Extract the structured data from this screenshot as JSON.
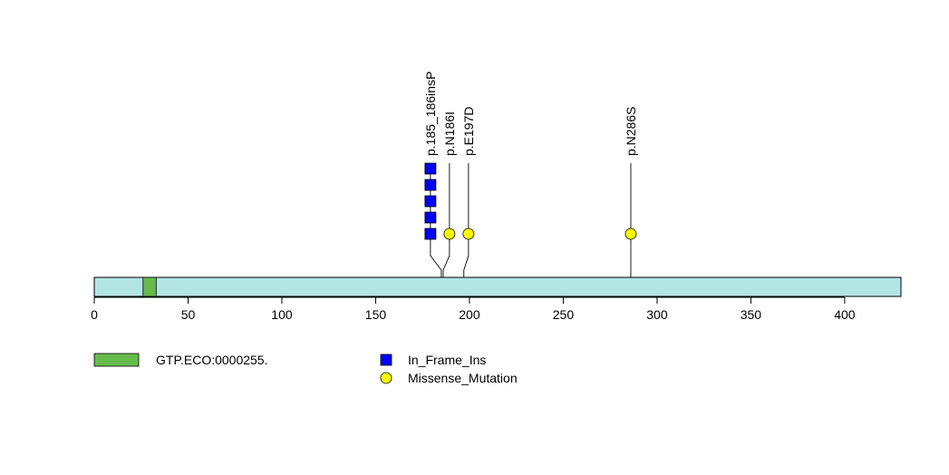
{
  "chart_data": {
    "type": "lollipop",
    "protein_length": 430,
    "xlim": [
      0,
      430
    ],
    "x_ticks": [
      "0",
      "50",
      "100",
      "150",
      "200",
      "250",
      "300",
      "350",
      "400"
    ],
    "protein_color": "#b3e5e5",
    "domains": [
      {
        "name": "GTP.ECO:0000255.",
        "start": 26,
        "end": 33,
        "color": "#66bb4c"
      }
    ],
    "mutation_types": [
      {
        "name": "In_Frame_Ins",
        "shape": "square",
        "color": "#0000ff"
      },
      {
        "name": "Missense_Mutation",
        "shape": "circle",
        "color": "#ffff00"
      }
    ],
    "mutations": [
      {
        "label": "p.185_186insP",
        "position": 185,
        "type": "In_Frame_Ins",
        "count": 5
      },
      {
        "label": "p.N186I",
        "position": 186,
        "type": "Missense_Mutation",
        "count": 1
      },
      {
        "label": "p.E197D",
        "position": 197,
        "type": "Missense_Mutation",
        "count": 1
      },
      {
        "label": "p.N286S",
        "position": 286,
        "type": "Missense_Mutation",
        "count": 1
      }
    ]
  }
}
